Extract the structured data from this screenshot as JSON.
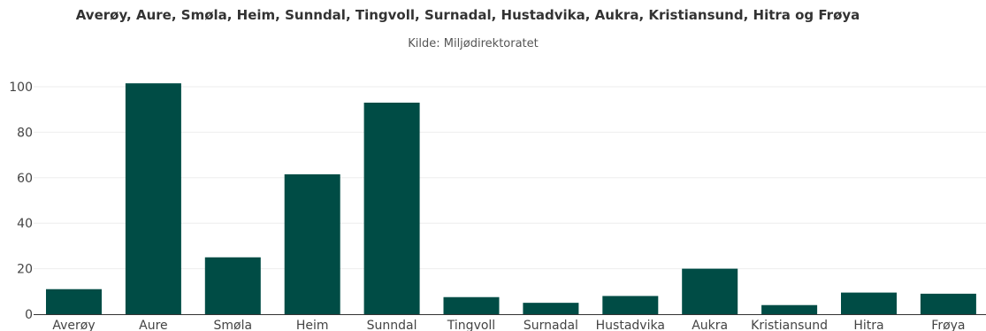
{
  "chart_data": {
    "type": "bar",
    "title": "Averøy, Aure, Smøla, Heim, Sunndal, Tingvoll, Surnadal, Hustadvika, Aukra, Kristiansund, Hitra og Frøya",
    "subtitle": "Kilde: Miljødirektoratet",
    "xlabel": "",
    "ylabel": "",
    "categories": [
      "Averøy",
      "Aure",
      "Smøla",
      "Heim",
      "Sunndal",
      "Tingvoll",
      "Surnadal",
      "Hustadvika",
      "Aukra",
      "Kristiansund",
      "Hitra",
      "Frøya"
    ],
    "values": [
      11,
      101.5,
      25,
      61.5,
      93,
      7.5,
      5,
      8,
      20,
      4,
      9.5,
      9
    ],
    "ylim": [
      0,
      110
    ],
    "yticks": [
      0,
      20,
      40,
      60,
      80,
      100
    ],
    "grid": true,
    "legend": "none",
    "bar_color": "#004c45"
  }
}
